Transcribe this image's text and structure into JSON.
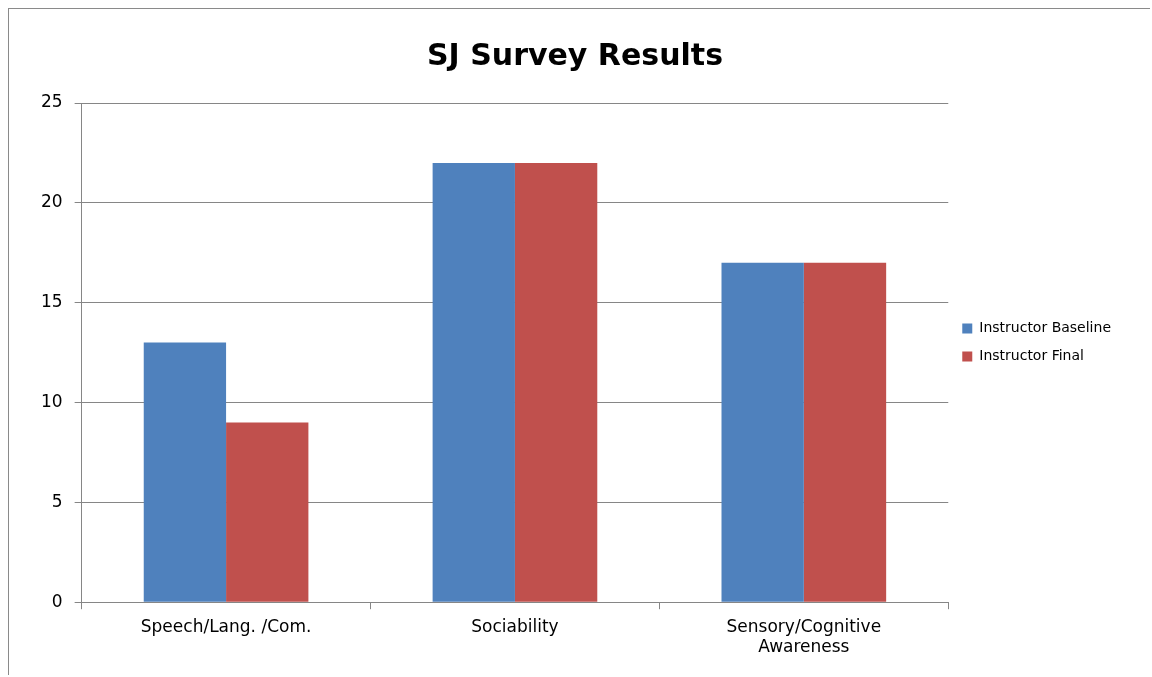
{
  "chart_data": {
    "type": "bar",
    "title": "SJ Survey Results",
    "categories": [
      "Speech/Lang. /Com.",
      "Sociability",
      "Sensory/Cognitive Awareness"
    ],
    "series": [
      {
        "name": "Instructor Baseline",
        "color": "#4f81bd",
        "values": [
          13,
          22,
          17
        ]
      },
      {
        "name": "Instructor Final",
        "color": "#c0504d",
        "values": [
          9,
          22,
          17
        ]
      }
    ],
    "ylim": [
      0,
      25
    ],
    "yticks": [
      0,
      5,
      10,
      15,
      20,
      25
    ],
    "grid": "y",
    "legend": "right"
  }
}
